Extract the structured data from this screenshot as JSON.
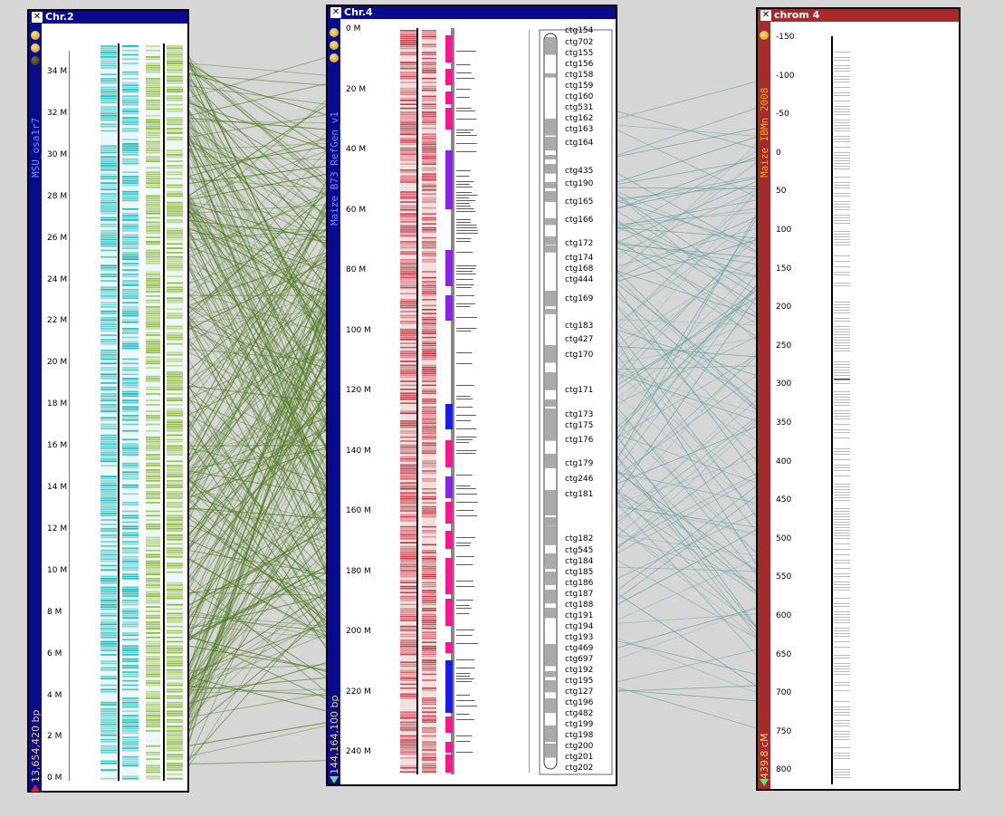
{
  "colors": {
    "panel_blue": "#0a0a8c",
    "panel_red": "#a52a2a",
    "link_green": "#4f7a1f",
    "link_teal": "#5a9a9a",
    "track_cyan": "#16b9b9",
    "track_green": "#8db838",
    "track_red": "#c0303a",
    "block_magenta": "#ff1493",
    "block_purple": "#8b22e8",
    "block_blue": "#1a1aee"
  },
  "panel1": {
    "title": "Chr.2",
    "dataset": "MSU_osa1r7",
    "size": "13,654,420 bp",
    "ticks": [
      "34 M",
      "32 M",
      "30 M",
      "28 M",
      "26 M",
      "24 M",
      "22 M",
      "20 M",
      "18 M",
      "16 M",
      "14 M",
      "12 M",
      "10 M",
      "8 M",
      "6 M",
      "4 M",
      "2 M",
      "0 M"
    ]
  },
  "panel2": {
    "title": "Chr.4",
    "dataset": "Maize B73 RefGen_v1",
    "size": "144,164,100 bp",
    "ticks": [
      "0 M",
      "20 M",
      "40 M",
      "60 M",
      "80 M",
      "100 M",
      "120 M",
      "140 M",
      "160 M",
      "180 M",
      "200 M",
      "220 M",
      "240 M"
    ],
    "contigs": [
      "ctg154",
      "ctg702",
      "ctg155",
      "ctg156",
      "ctg158",
      "ctg159",
      "ctg160",
      "ctg531",
      "ctg162",
      "ctg163",
      "ctg164",
      "ctg435",
      "ctg190",
      "ctg165",
      "ctg166",
      "ctg172",
      "ctg174",
      "ctg168",
      "ctg444",
      "ctg169",
      "ctg183",
      "ctg427",
      "ctg170",
      "ctg171",
      "ctg173",
      "ctg175",
      "ctg176",
      "ctg179",
      "ctg246",
      "ctg181",
      "ctg182",
      "ctg545",
      "ctg184",
      "ctg185",
      "ctg186",
      "ctg187",
      "ctg188",
      "ctg191",
      "ctg194",
      "ctg193",
      "ctg469",
      "ctg697",
      "ctg192",
      "ctg195",
      "ctg127",
      "ctg196",
      "ctg482",
      "ctg199",
      "ctg198",
      "ctg200",
      "ctg201",
      "ctg202"
    ]
  },
  "panel3": {
    "title": "chrom 4",
    "dataset": "Maize IBMn 2008",
    "size": "439.8 cM",
    "ticks": [
      "-150",
      "-100",
      "-50",
      "0",
      "50",
      "100",
      "150",
      "200",
      "250",
      "300",
      "350",
      "400",
      "450",
      "500",
      "550",
      "600",
      "650",
      "700",
      "750",
      "800"
    ]
  }
}
